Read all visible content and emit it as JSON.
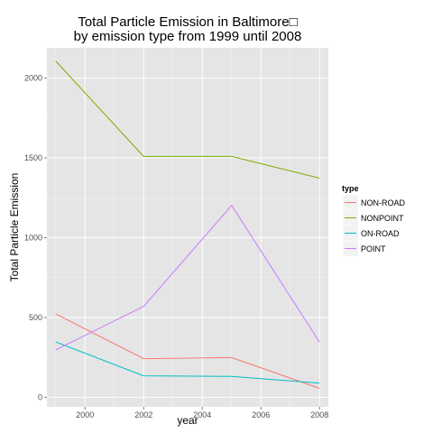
{
  "chart_data": {
    "type": "line",
    "title_lines": [
      "Total Particle Emission in Baltimore□",
      "by emission type from 1999 until 2008"
    ],
    "xlabel": "year",
    "ylabel": "Total Particle Emission",
    "xlim": [
      1998.7,
      2008.3
    ],
    "ylim": [
      -60,
      2190
    ],
    "x_ticks": [
      2000,
      2002,
      2004,
      2006,
      2008
    ],
    "y_ticks": [
      0,
      500,
      1000,
      1500,
      2000
    ],
    "grid": true,
    "legend_position": "right",
    "legend_title": "type",
    "x": [
      1999,
      2002,
      2005,
      2008
    ],
    "series": [
      {
        "name": "NON-ROAD",
        "color": "#F8766D",
        "values": [
          522.9,
          241.8,
          248.9,
          55.8
        ]
      },
      {
        "name": "NONPOINT",
        "color": "#7CAE00",
        "values": [
          2107.6,
          1509.5,
          1509.5,
          1373.2
        ]
      },
      {
        "name": "ON-ROAD",
        "color": "#00BFC4",
        "values": [
          346.8,
          134.3,
          130.4,
          88.3
        ]
      },
      {
        "name": "POINT",
        "color": "#C77CFF",
        "values": [
          296.8,
          569.3,
          1202.5,
          344.98
        ]
      }
    ]
  }
}
